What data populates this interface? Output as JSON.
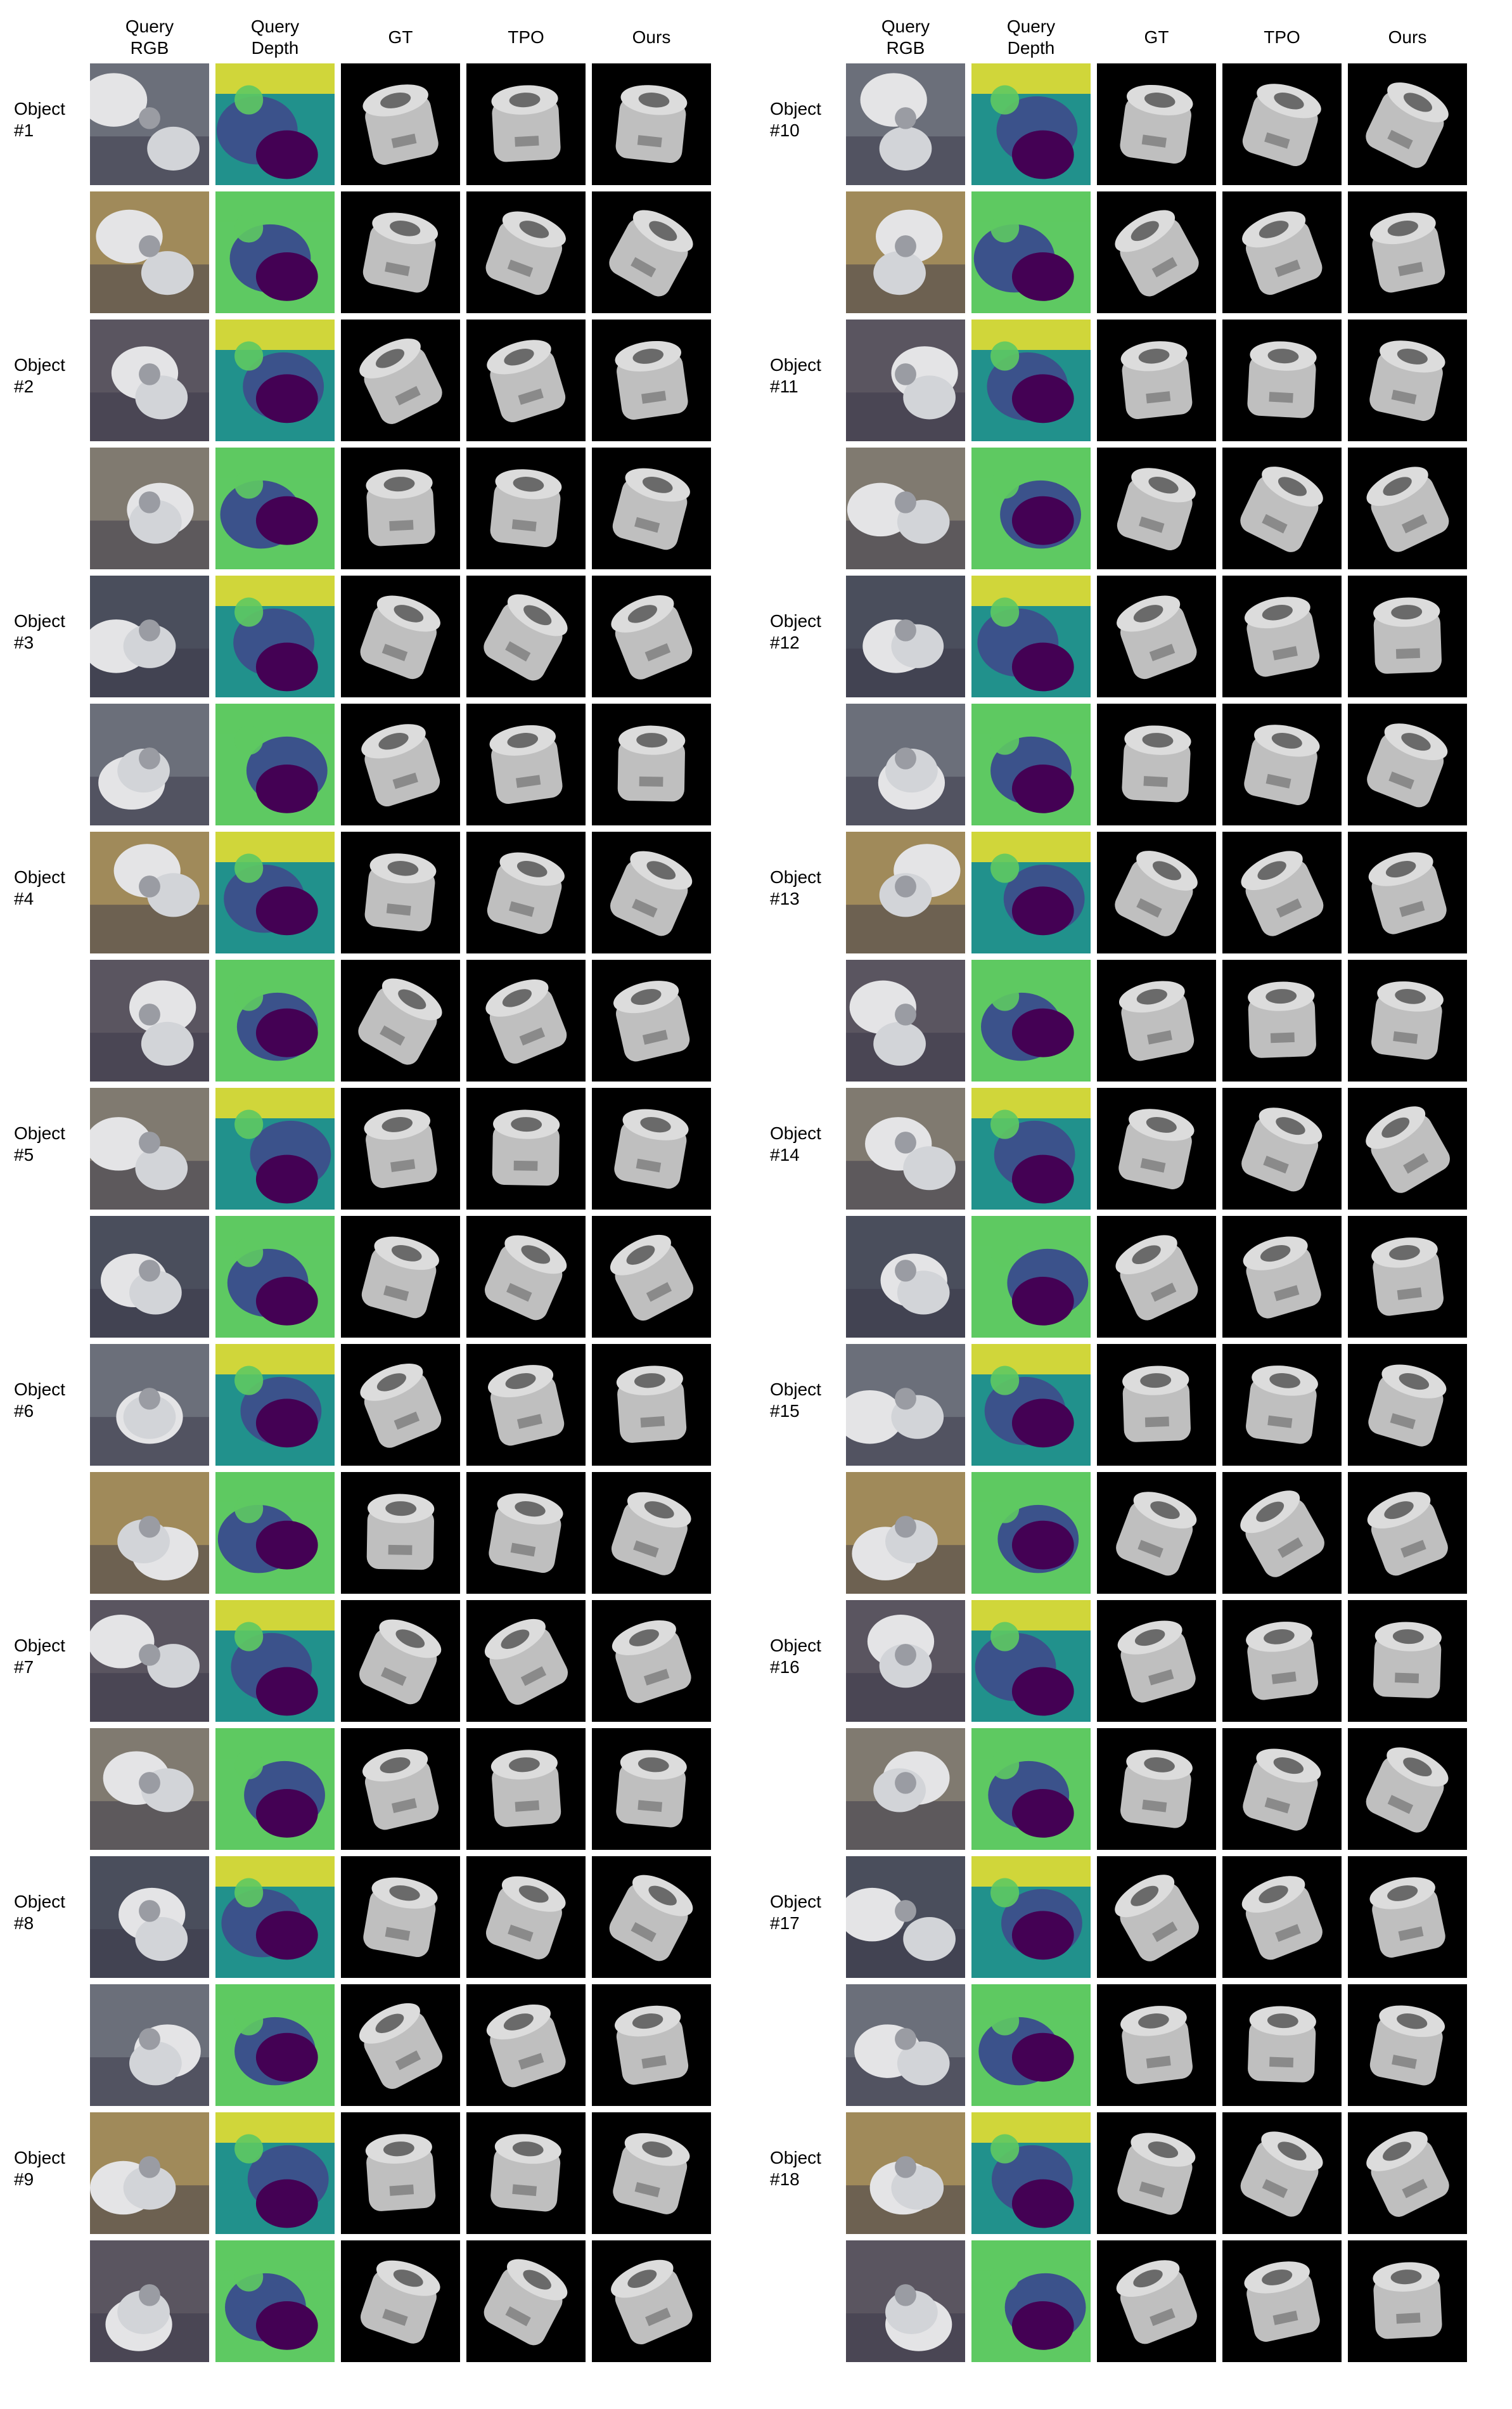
{
  "columns": [
    "Query\nRGB",
    "Query\nDepth",
    "GT",
    "TPO",
    "Ours"
  ],
  "column_headers": [
    {
      "key": "rgb",
      "label": "Query\nRGB"
    },
    {
      "key": "depth",
      "label": "Query\nDepth"
    },
    {
      "key": "gt",
      "label": "GT"
    },
    {
      "key": "tpo",
      "label": "TPO"
    },
    {
      "key": "ours",
      "label": "Ours"
    }
  ],
  "left_panel": {
    "objects": [
      {
        "label": "Object\n#1"
      },
      {
        "label": "Object\n#2"
      },
      {
        "label": "Object\n#3"
      },
      {
        "label": "Object\n#4"
      },
      {
        "label": "Object\n#5"
      },
      {
        "label": "Object\n#6"
      },
      {
        "label": "Object\n#7"
      },
      {
        "label": "Object\n#8"
      },
      {
        "label": "Object\n#9"
      }
    ]
  },
  "right_panel": {
    "objects": [
      {
        "label": "Object\n#10"
      },
      {
        "label": "Object\n#11"
      },
      {
        "label": "Object\n#12"
      },
      {
        "label": "Object\n#13"
      },
      {
        "label": "Object\n#14"
      },
      {
        "label": "Object\n#15"
      },
      {
        "label": "Object\n#16"
      },
      {
        "label": "Object\n#17"
      },
      {
        "label": "Object\n#18"
      }
    ]
  },
  "colors": {
    "background": "#ffffff",
    "render_bg": "#000000",
    "render_fg": "#c8c8c8",
    "depth_palette": [
      "#440154",
      "#3b528b",
      "#21918c",
      "#5ec962",
      "#fde725"
    ]
  }
}
